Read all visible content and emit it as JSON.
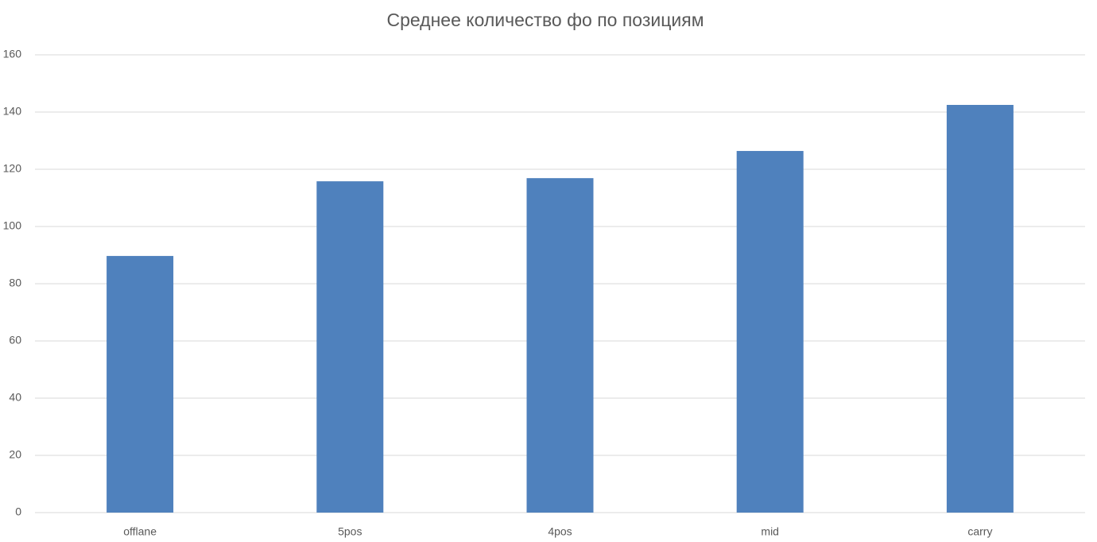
{
  "chart_data": {
    "type": "bar",
    "title": "Среднее количество фо по позициям",
    "categories": [
      "offlane",
      "5pos",
      "4pos",
      "mid",
      "carry"
    ],
    "values": [
      89.7,
      115.8,
      116.9,
      126.4,
      142.5
    ],
    "color": "#4f81bd",
    "ylim": [
      0,
      160
    ],
    "yticks": [
      0,
      20,
      40,
      60,
      80,
      100,
      120,
      140,
      160
    ],
    "grid": true
  }
}
